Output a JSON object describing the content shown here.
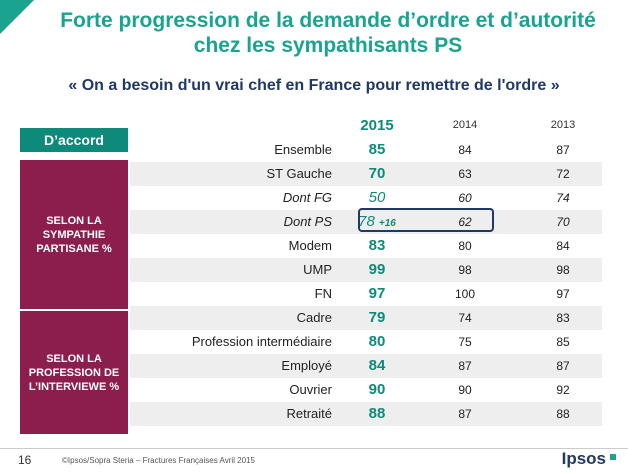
{
  "title_line1": "Forte progression de la demande d’ordre et d’autorité",
  "title_line2": "chez les sympathisants PS",
  "subtitle": "« On a besoin d'un vrai chef en France pour remettre de l'ordre »",
  "accord_label": "D’accord",
  "band_sympathie": "SELON LA SYMPATHIE PARTISANE %",
  "band_profession": "SELON LA PROFESSION DE L’INTERVIEWE %",
  "highlight_delta": "+16",
  "footer": {
    "page_number": "16",
    "source": "©Ipsos/Sopra Steria – Fractures Françaises Avril 2015",
    "logo": "Ipsos"
  },
  "colors": {
    "accent": "#1aa38f",
    "band": "#8c1e4e",
    "navy": "#1f3864"
  },
  "chart_data": {
    "type": "table",
    "columns": [
      "2015",
      "2014",
      "2013"
    ],
    "rows": [
      {
        "label": "Ensemble",
        "values": [
          "85",
          "84",
          "87"
        ],
        "italic": false,
        "shade": false
      },
      {
        "label": "ST Gauche",
        "values": [
          "70",
          "63",
          "72"
        ],
        "italic": false,
        "shade": true
      },
      {
        "label": "Dont FG",
        "values": [
          "50",
          "60",
          "74"
        ],
        "italic": true,
        "shade": false
      },
      {
        "label": "Dont PS",
        "values": [
          "78",
          "62",
          "70"
        ],
        "italic": true,
        "shade": true
      },
      {
        "label": "Modem",
        "values": [
          "83",
          "80",
          "84"
        ],
        "italic": false,
        "shade": false
      },
      {
        "label": "UMP",
        "values": [
          "99",
          "98",
          "98"
        ],
        "italic": false,
        "shade": true
      },
      {
        "label": "FN",
        "values": [
          "97",
          "100",
          "97"
        ],
        "italic": false,
        "shade": false
      },
      {
        "label": "Cadre",
        "values": [
          "79",
          "74",
          "83"
        ],
        "italic": false,
        "shade": true
      },
      {
        "label": "Profession intermédiaire",
        "values": [
          "80",
          "75",
          "85"
        ],
        "italic": false,
        "shade": false
      },
      {
        "label": "Employé",
        "values": [
          "84",
          "87",
          "87"
        ],
        "italic": false,
        "shade": true
      },
      {
        "label": "Ouvrier",
        "values": [
          "90",
          "90",
          "92"
        ],
        "italic": false,
        "shade": false
      },
      {
        "label": "Retraité",
        "values": [
          "88",
          "87",
          "88"
        ],
        "italic": false,
        "shade": true
      }
    ]
  }
}
